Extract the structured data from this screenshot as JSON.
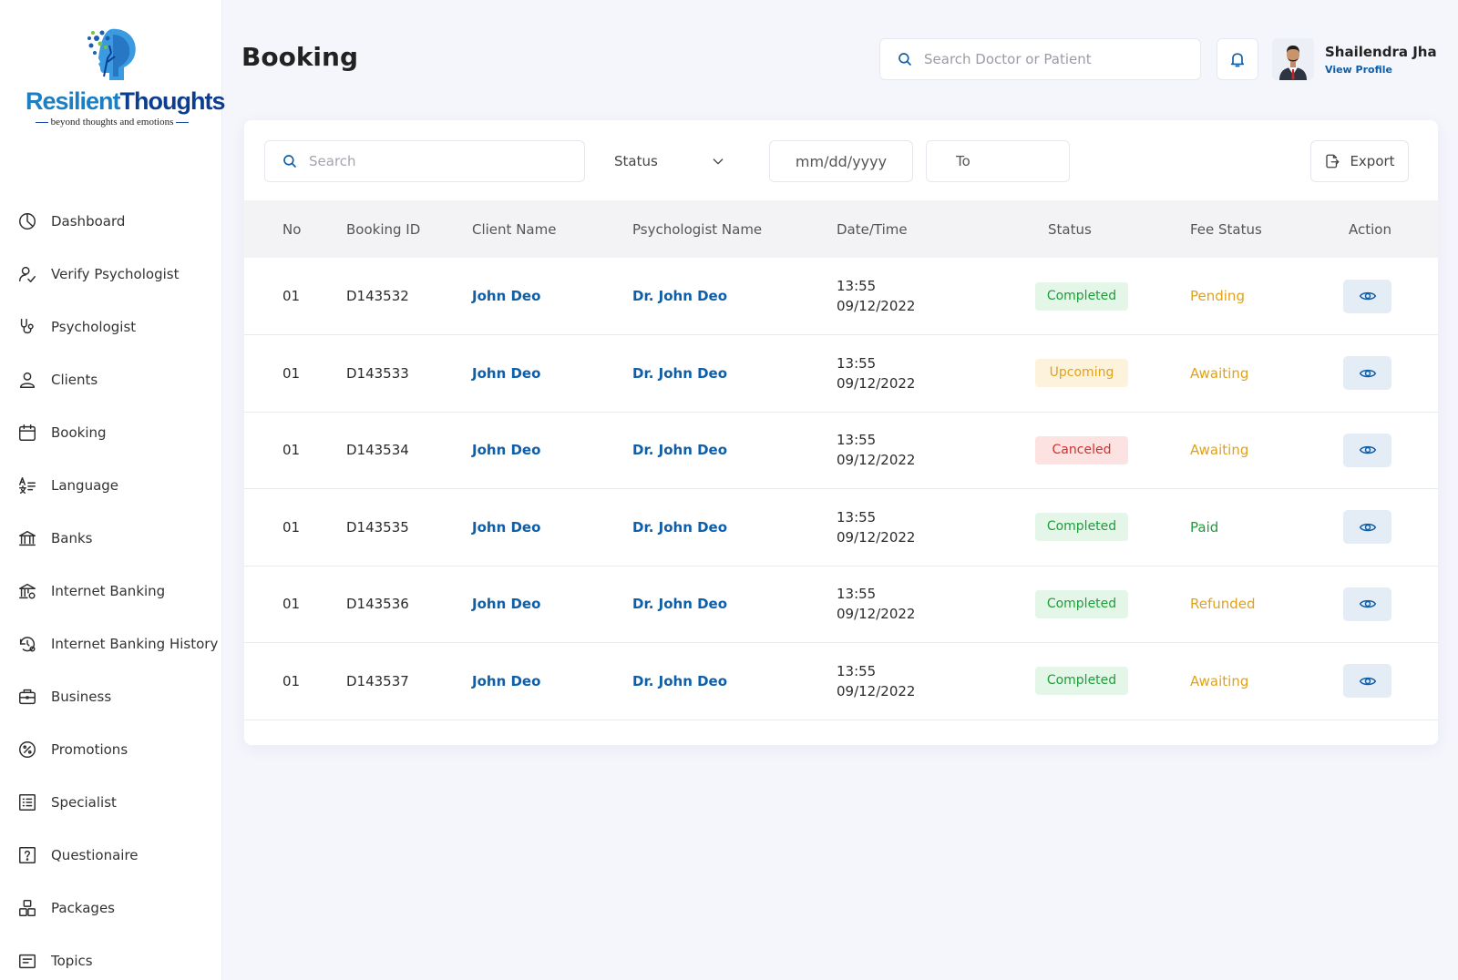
{
  "brand": {
    "name_part1": "Resilient",
    "name_part2": "Thoughts",
    "tagline": "beyond thoughts and emotions"
  },
  "sidebar": {
    "items": [
      {
        "label": "Dashboard",
        "icon": "dashboard-icon"
      },
      {
        "label": "Verify Psychologist",
        "icon": "user-check-icon"
      },
      {
        "label": "Psychologist",
        "icon": "stethoscope-icon"
      },
      {
        "label": "Clients",
        "icon": "user-icon"
      },
      {
        "label": "Booking",
        "icon": "calendar-icon"
      },
      {
        "label": "Language",
        "icon": "language-icon"
      },
      {
        "label": "Banks",
        "icon": "bank-icon"
      },
      {
        "label": "Internet Banking",
        "icon": "bank-settings-icon"
      },
      {
        "label": "Internet Banking History",
        "icon": "history-icon"
      },
      {
        "label": "Business",
        "icon": "briefcase-icon"
      },
      {
        "label": "Promotions",
        "icon": "percent-icon"
      },
      {
        "label": "Specialist",
        "icon": "list-icon"
      },
      {
        "label": "Questionaire",
        "icon": "question-icon"
      },
      {
        "label": "Packages",
        "icon": "packages-icon"
      },
      {
        "label": "Topics",
        "icon": "topics-icon"
      }
    ]
  },
  "header": {
    "title": "Booking",
    "search_placeholder": "Search Doctor or Patient",
    "user_name": "Shailendra Jha",
    "view_profile": "View Profile"
  },
  "filters": {
    "search_placeholder": "Search",
    "status_label": "Status",
    "date_from": "mm/dd/yyyy",
    "date_to": "To",
    "export_label": "Export"
  },
  "table": {
    "headers": [
      "No",
      "Booking ID",
      "Client Name",
      "Psychologist Name",
      "Date/Time",
      "Status",
      "Fee Status",
      "Action"
    ],
    "rows": [
      {
        "no": "01",
        "id": "D143532",
        "client": "John Deo",
        "psychologist": "Dr. John Deo",
        "time": "13:55",
        "date": "09/12/2022",
        "status": "Completed",
        "fee": "Pending"
      },
      {
        "no": "01",
        "id": "D143533",
        "client": "John Deo",
        "psychologist": "Dr. John Deo",
        "time": "13:55",
        "date": "09/12/2022",
        "status": "Upcoming",
        "fee": "Awaiting"
      },
      {
        "no": "01",
        "id": "D143534",
        "client": "John Deo",
        "psychologist": "Dr. John Deo",
        "time": "13:55",
        "date": "09/12/2022",
        "status": "Canceled",
        "fee": "Awaiting"
      },
      {
        "no": "01",
        "id": "D143535",
        "client": "John Deo",
        "psychologist": "Dr. John Deo",
        "time": "13:55",
        "date": "09/12/2022",
        "status": "Completed",
        "fee": "Paid"
      },
      {
        "no": "01",
        "id": "D143536",
        "client": "John Deo",
        "psychologist": "Dr. John Deo",
        "time": "13:55",
        "date": "09/12/2022",
        "status": "Completed",
        "fee": "Refunded"
      },
      {
        "no": "01",
        "id": "D143537",
        "client": "John Deo",
        "psychologist": "Dr. John Deo",
        "time": "13:55",
        "date": "09/12/2022",
        "status": "Completed",
        "fee": "Awaiting"
      }
    ]
  },
  "colors": {
    "accent": "#0f5ea8",
    "status_completed_bg": "#e4f6e8",
    "status_completed_fg": "#1f9d3a",
    "status_upcoming_bg": "#fdf3dc",
    "status_upcoming_fg": "#e0a218",
    "status_canceled_bg": "#fde2e2",
    "status_canceled_fg": "#d32f2f",
    "fee_pending": "#e0a218",
    "fee_awaiting": "#e0a218",
    "fee_paid": "#1f9d3a",
    "fee_refunded": "#e0a218"
  }
}
